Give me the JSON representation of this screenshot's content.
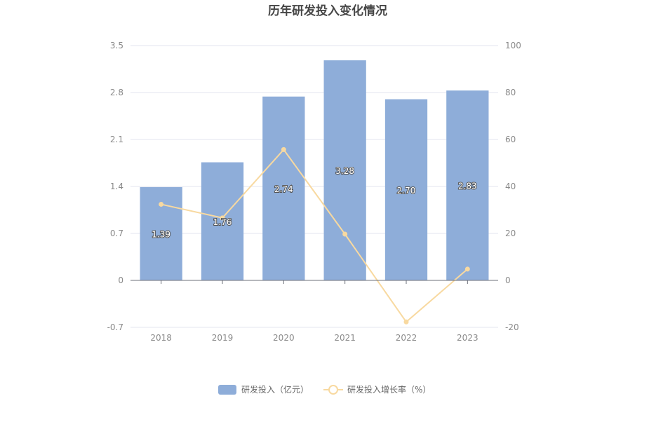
{
  "chart_data": {
    "type": "bar",
    "title": "历年研发投入变化情况",
    "categories": [
      "2018",
      "2019",
      "2020",
      "2021",
      "2022",
      "2023"
    ],
    "series": [
      {
        "name": "研发投入（亿元）",
        "type": "bar",
        "axis": "left",
        "values": [
          1.39,
          1.76,
          2.74,
          3.28,
          2.7,
          2.83
        ],
        "labels": [
          "1.39",
          "1.76",
          "2.74",
          "3.28",
          "2.70",
          "2.83"
        ],
        "color": "#8eadd9"
      },
      {
        "name": "研发投入增长率（%）",
        "type": "line",
        "axis": "right",
        "values": [
          32.4,
          26.6,
          55.7,
          19.7,
          -17.7,
          4.8
        ],
        "color": "#f8d9a0"
      }
    ],
    "y_left": {
      "min": -0.7,
      "max": 3.5,
      "ticks": [
        "3.5",
        "2.8",
        "2.1",
        "1.4",
        "0.7",
        "0",
        "-0.7"
      ]
    },
    "y_right": {
      "min": -20,
      "max": 100,
      "ticks": [
        "100",
        "80",
        "60",
        "40",
        "20",
        "0",
        "-20"
      ]
    },
    "grid": true,
    "legend_position": "bottom"
  }
}
